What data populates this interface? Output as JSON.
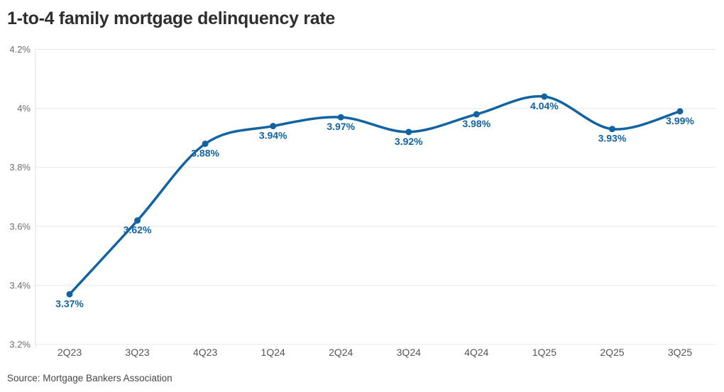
{
  "title": "1-to-4 family mortgage delinquency rate",
  "source": "Source: Mortgage Bankers Association",
  "accent_color": "#1263a3",
  "chart_data": {
    "type": "line",
    "title": "1-to-4 family mortgage delinquency rate",
    "categories": [
      "2Q23",
      "3Q23",
      "4Q23",
      "1Q24",
      "2Q24",
      "3Q24",
      "4Q24",
      "1Q25",
      "2Q25",
      "3Q25"
    ],
    "values": [
      3.37,
      3.62,
      3.88,
      3.94,
      3.97,
      3.92,
      3.98,
      4.04,
      3.93,
      3.99
    ],
    "data_labels": [
      "3.37%",
      "3.62%",
      "3.88%",
      "3.94%",
      "3.97%",
      "3.92%",
      "3.98%",
      "4.04%",
      "3.93%",
      "3.99%"
    ],
    "xlabel": "",
    "ylabel": "",
    "ylim": [
      3.2,
      4.2
    ],
    "yticks": [
      3.2,
      3.4,
      3.6,
      3.8,
      4.0,
      4.2
    ],
    "ytick_labels": [
      "3.2%",
      "3.4%",
      "3.6%",
      "3.8%",
      "4%",
      "4.2%"
    ],
    "grid": true,
    "legend": "none",
    "smooth": true,
    "line_color": "#1263a3",
    "grid_color": "#e7e7e7",
    "axis_line_color": "#dfdfdf",
    "ytick_text_color": "#6e6e6e",
    "xtick_text_color": "#555555",
    "source": "Source: Mortgage Bankers Association"
  }
}
